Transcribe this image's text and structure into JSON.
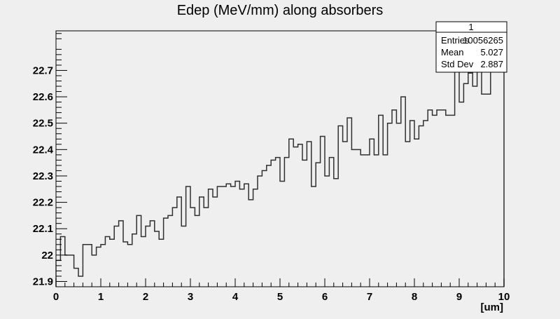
{
  "chart_data": {
    "type": "line",
    "style": "step-histogram",
    "title": "Edep (MeV/mm) along absorbers",
    "xlabel": "[um]",
    "ylabel": "",
    "xlim": [
      0,
      10
    ],
    "ylim": [
      21.88,
      22.85
    ],
    "x_ticks": [
      "0",
      "1",
      "2",
      "3",
      "4",
      "5",
      "6",
      "7",
      "8",
      "9",
      "10"
    ],
    "y_ticks": [
      "21.9",
      "22",
      "22.1",
      "22.2",
      "22.3",
      "22.4",
      "22.5",
      "22.6",
      "22.7"
    ],
    "y_tick_values": [
      21.9,
      22.0,
      22.1,
      22.2,
      22.3,
      22.4,
      22.5,
      22.6,
      22.7
    ],
    "grid": false,
    "bin_width": 0.1,
    "bin_values": [
      21.98,
      22.07,
      22.0,
      22.0,
      21.95,
      21.92,
      22.04,
      22.04,
      22.0,
      22.03,
      22.04,
      22.07,
      22.06,
      22.11,
      22.13,
      22.05,
      22.04,
      22.08,
      22.15,
      22.07,
      22.11,
      22.13,
      22.09,
      22.06,
      22.14,
      22.15,
      22.18,
      22.22,
      22.11,
      22.26,
      22.18,
      22.15,
      22.22,
      22.18,
      22.25,
      22.22,
      22.26,
      22.26,
      22.27,
      22.26,
      22.28,
      22.25,
      22.27,
      22.21,
      22.25,
      22.3,
      22.32,
      22.34,
      22.36,
      22.37,
      22.28,
      22.37,
      22.44,
      22.41,
      22.42,
      22.36,
      22.43,
      22.26,
      22.35,
      22.45,
      22.3,
      22.37,
      22.29,
      22.49,
      22.43,
      22.52,
      22.4,
      22.4,
      22.38,
      22.38,
      22.44,
      22.38,
      22.53,
      22.38,
      22.5,
      22.55,
      22.5,
      22.6,
      22.43,
      22.51,
      22.44,
      22.49,
      22.51,
      22.55,
      22.53,
      22.55,
      22.55,
      22.53,
      22.53,
      22.72,
      22.58,
      22.65,
      22.69,
      22.64,
      22.73,
      22.61,
      22.61,
      22.74,
      22.74,
      22.74
    ],
    "stats": {
      "name": "1",
      "rows": [
        {
          "label": "Entries",
          "value": "10056265"
        },
        {
          "label": "Mean",
          "value": "5.027"
        },
        {
          "label": "Std Dev",
          "value": "2.887"
        }
      ]
    },
    "colors": {
      "background": "#efefef",
      "frame": "#000000",
      "line": "#303030",
      "stats_box": "#ffffff"
    }
  }
}
